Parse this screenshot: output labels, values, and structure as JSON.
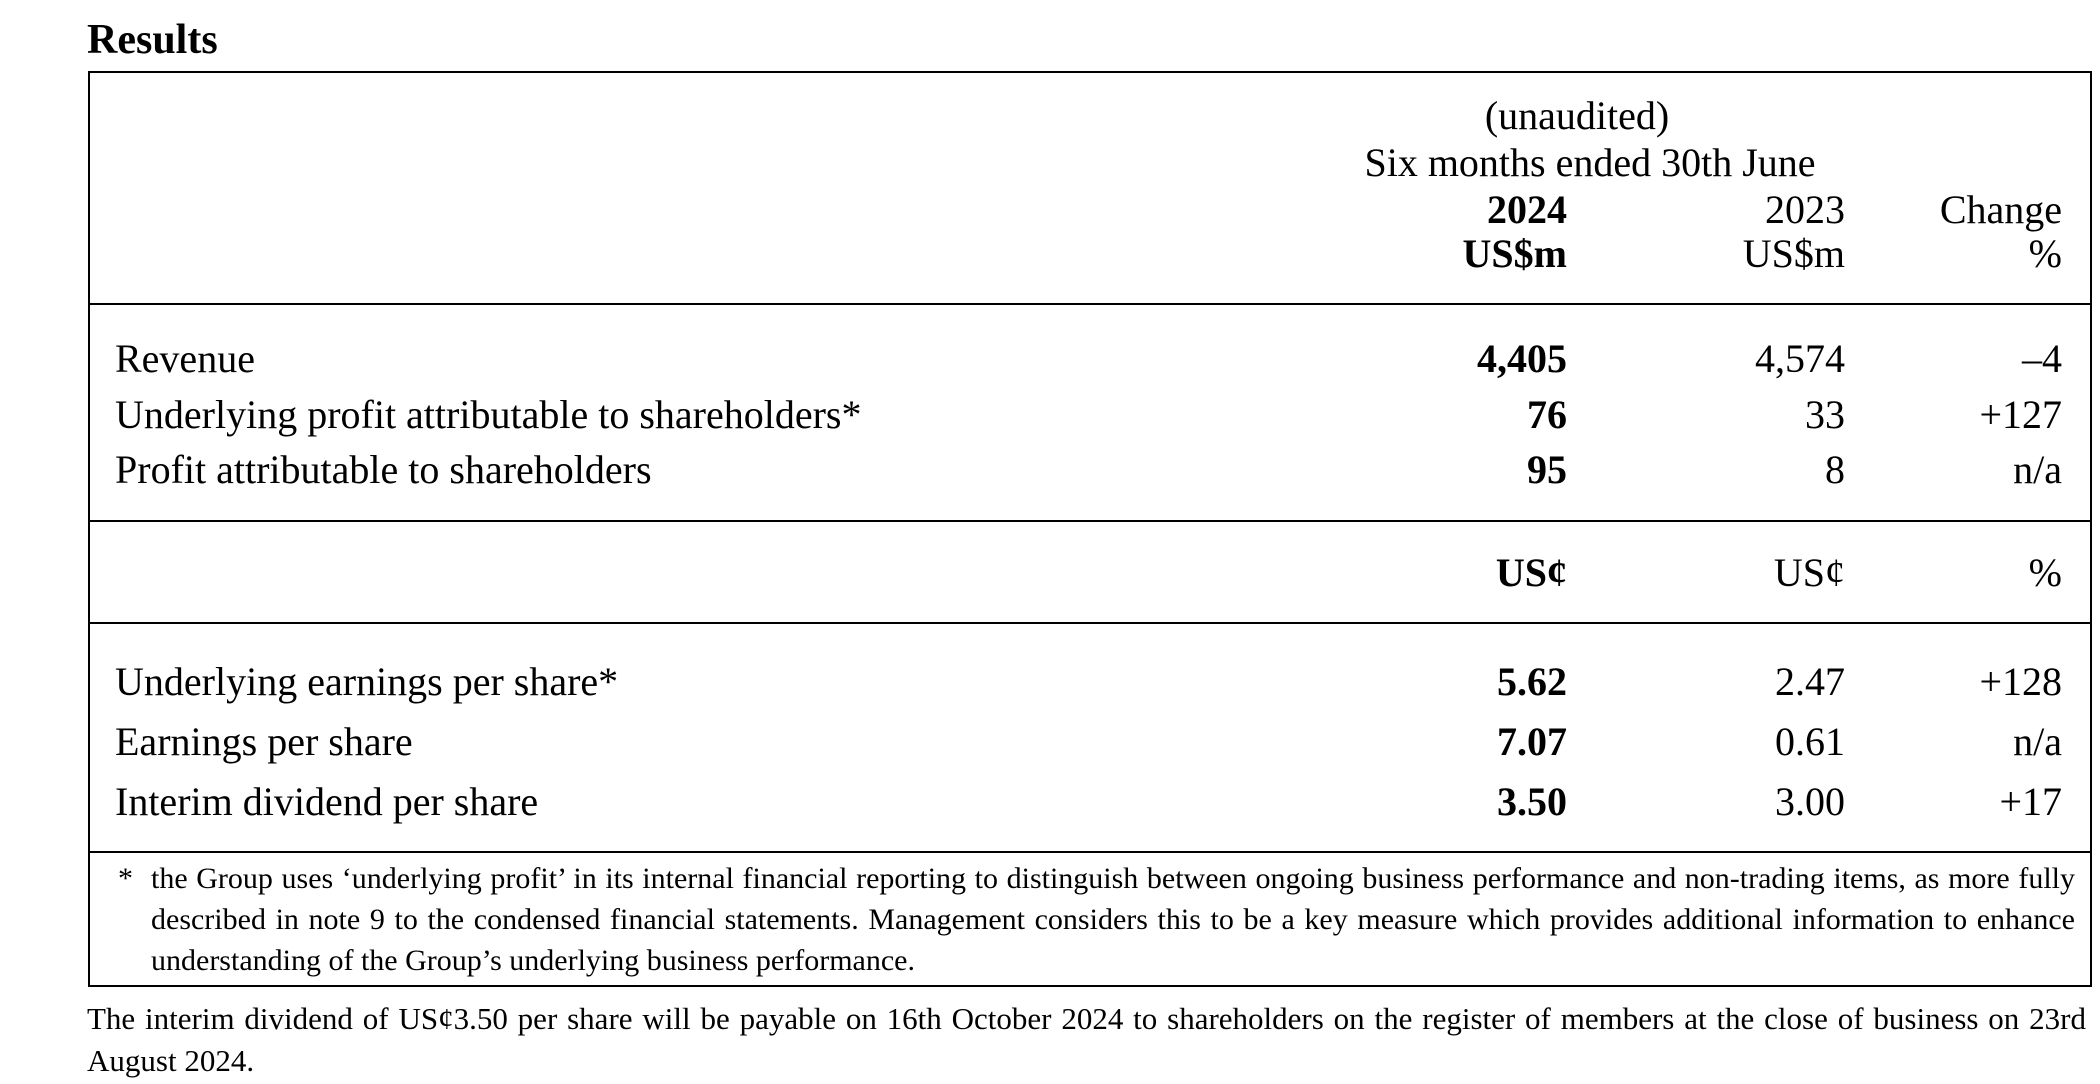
{
  "title": "Results",
  "table": {
    "header": {
      "note": "(unaudited)",
      "period": "Six months ended 30th June",
      "columns": [
        {
          "year": "2024",
          "unit": "US$m"
        },
        {
          "year": "2023",
          "unit": "US$m"
        },
        {
          "year": "Change",
          "unit": "%"
        }
      ]
    },
    "sections": [
      {
        "rows": [
          [
            "Revenue",
            "4,405",
            "4,574",
            "–4"
          ],
          [
            "Underlying profit attributable to shareholders*",
            "76",
            "33",
            "+127"
          ],
          [
            "Profit attributable to shareholders",
            "95",
            "8",
            "n/a"
          ]
        ]
      },
      {
        "units": [
          "US¢",
          "US¢",
          "%"
        ],
        "rows": [
          [
            "Underlying earnings per share*",
            "5.62",
            "2.47",
            "+128"
          ],
          [
            "Earnings per share",
            "7.07",
            "0.61",
            "n/a"
          ],
          [
            "Interim dividend per share",
            "3.50",
            "3.00",
            "+17"
          ]
        ]
      }
    ]
  },
  "footnote": {
    "marker": "*",
    "text": "the Group uses ‘underlying profit’ in its internal financial reporting to distinguish between ongoing business performance and non-trading items, as more fully described in note 9 to the condensed financial statements.  Management considers this to be a key measure which provides additional information to enhance understanding of the Group’s underlying business performance."
  },
  "note": "The interim dividend of US¢3.50 per share will be payable on 16th October 2024 to shareholders on the register of members at the close of business on 23rd August 2024."
}
